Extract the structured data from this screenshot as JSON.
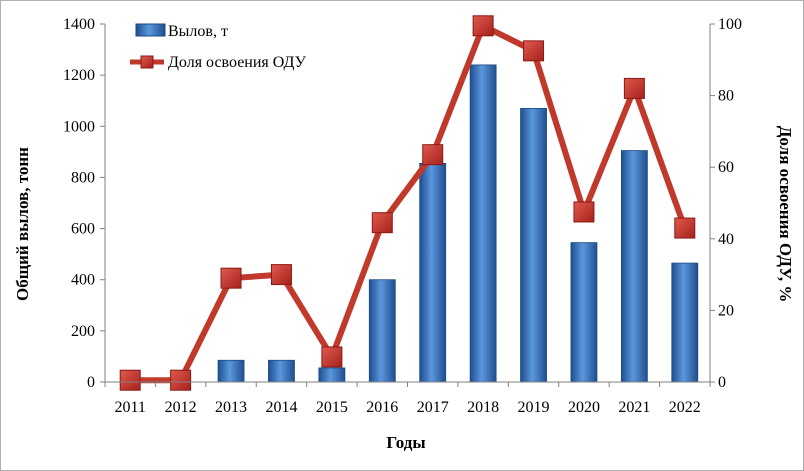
{
  "chart_data": {
    "type": "bar",
    "categories": [
      "2011",
      "2012",
      "2013",
      "2014",
      "2015",
      "2016",
      "2017",
      "2018",
      "2019",
      "2020",
      "2021",
      "2022"
    ],
    "series": [
      {
        "name": "Вылов, т",
        "type": "bar",
        "axis": "left",
        "color": "#2f6db6",
        "values": [
          0,
          0,
          85,
          85,
          55,
          400,
          855,
          1240,
          1070,
          545,
          905,
          465
        ]
      },
      {
        "name": "Доля освоения ОДУ",
        "type": "line",
        "axis": "right",
        "color": "#c0392b",
        "marker_color": "#d23a30",
        "values": [
          0.5,
          0.5,
          29,
          30,
          7,
          44.5,
          63.5,
          99.5,
          92.5,
          47.5,
          82,
          43
        ]
      }
    ],
    "xlabel": "Годы",
    "ylabel": "Общий вылов, тонн",
    "ylabel_right": "Доля освоения ОДУ, %",
    "ylim": [
      0,
      1400
    ],
    "ylim_right": [
      0,
      100
    ],
    "yticks": [
      "0",
      "200",
      "400",
      "600",
      "800",
      "1000",
      "1200",
      "1400"
    ],
    "yticks_right": [
      "0",
      "20",
      "40",
      "60",
      "80",
      "100"
    ],
    "grid": false,
    "legend_position": "top-left"
  }
}
